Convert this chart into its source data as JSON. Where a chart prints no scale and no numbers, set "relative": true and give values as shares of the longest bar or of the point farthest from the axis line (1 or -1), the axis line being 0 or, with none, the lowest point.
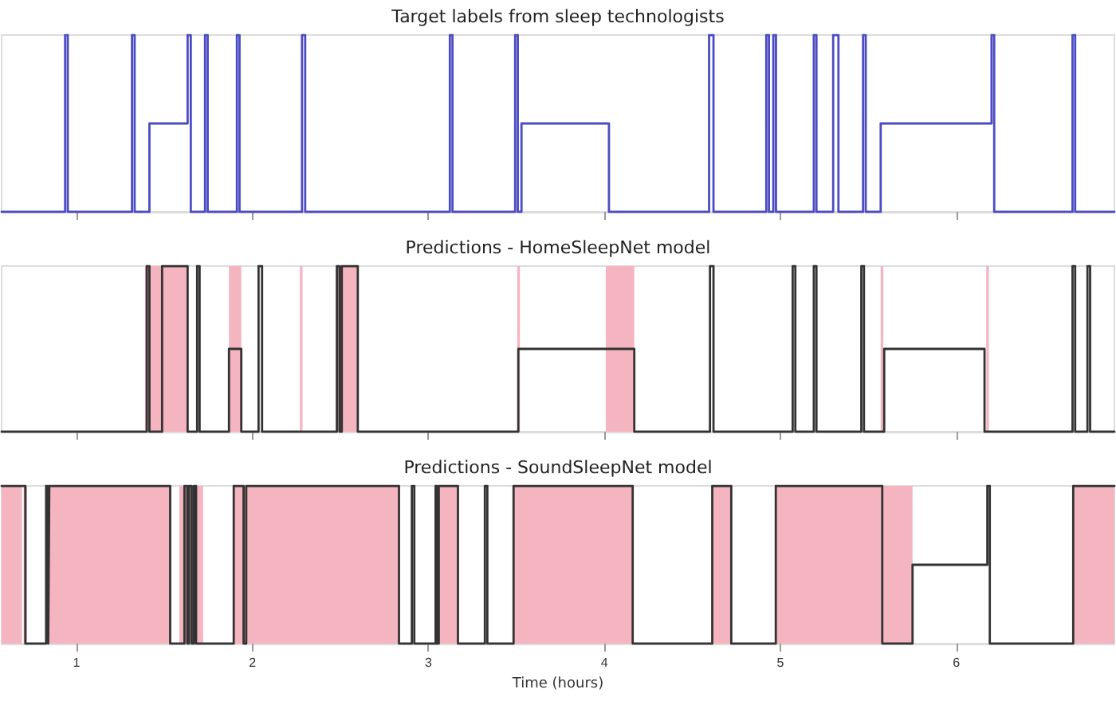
{
  "chart_data": [
    {
      "type": "step",
      "title": "Target labels from sleep technologists",
      "relative": true,
      "color": "#4b4bc4",
      "xlim": [
        0.575,
        6.898
      ],
      "xticks": [
        1,
        2,
        3,
        4,
        5,
        6
      ],
      "tick_labels": false,
      "x": [
        0.575,
        0.936,
        0.951,
        1.316,
        1.331,
        1.415,
        1.632,
        1.65,
        1.731,
        1.746,
        1.912,
        1.927,
        2.282,
        2.3,
        3.122,
        3.137,
        3.493,
        3.508,
        3.529,
        4.026,
        4.595,
        4.62,
        4.92,
        4.935,
        4.96,
        4.975,
        5.19,
        5.205,
        5.3,
        5.33,
        5.47,
        5.485,
        5.57,
        6.2,
        6.215,
        6.66,
        6.675,
        6.898
      ],
      "values": [
        0,
        1,
        0,
        1,
        0,
        0.5,
        1,
        0,
        1,
        0,
        1,
        0,
        1,
        0,
        1,
        0,
        1,
        0,
        0.5,
        0,
        1,
        0,
        1,
        0,
        1,
        0,
        1,
        0,
        1,
        0,
        1,
        0,
        0.5,
        1,
        0,
        1,
        0,
        0
      ]
    },
    {
      "type": "step",
      "title": "Predictions - HomeSleepNet model",
      "relative": true,
      "color": "#333333",
      "xlim": [
        0.575,
        6.898
      ],
      "xticks": [
        1,
        2,
        3,
        4,
        5,
        6
      ],
      "tick_labels": false,
      "x": [
        0.575,
        1.4,
        1.415,
        1.487,
        1.632,
        1.686,
        1.7,
        1.867,
        1.937,
        2.035,
        2.055,
        2.48,
        2.495,
        2.508,
        2.599,
        3.511,
        4.17,
        4.6,
        4.62,
        5.07,
        5.085,
        5.19,
        5.205,
        5.46,
        5.475,
        5.59,
        6.16,
        6.66,
        6.675,
        6.745,
        6.76,
        6.898
      ],
      "values": [
        0,
        1,
        0,
        1,
        0,
        1,
        0,
        0.5,
        0,
        1,
        0,
        1,
        0,
        1,
        0,
        0.5,
        0,
        1,
        0,
        1,
        0,
        1,
        0,
        1,
        0,
        0.5,
        0,
        1,
        0,
        1,
        0,
        0
      ],
      "bands": [
        {
          "axis": "x",
          "from": 1.39,
          "to": 1.632,
          "color": "#f4b4c0"
        },
        {
          "axis": "x",
          "from": 1.867,
          "to": 1.937,
          "color": "#f4b4c0"
        },
        {
          "axis": "x",
          "from": 2.27,
          "to": 2.285,
          "color": "#f4b4c0"
        },
        {
          "axis": "x",
          "from": 2.48,
          "to": 2.599,
          "color": "#f4b4c0"
        },
        {
          "axis": "x",
          "from": 3.505,
          "to": 3.52,
          "color": "#f4b4c0"
        },
        {
          "axis": "x",
          "from": 4.008,
          "to": 4.17,
          "color": "#f4b4c0"
        },
        {
          "axis": "x",
          "from": 5.57,
          "to": 5.585,
          "color": "#f4b4c0"
        },
        {
          "axis": "x",
          "from": 6.17,
          "to": 6.185,
          "color": "#f4b4c0"
        }
      ]
    },
    {
      "type": "step",
      "title": "Predictions - SoundSleepNet model",
      "relative": true,
      "color": "#333333",
      "xlim": [
        0.575,
        6.898
      ],
      "xticks": [
        1,
        2,
        3,
        4,
        5,
        6
      ],
      "xlabel": "Time (hours)",
      "x": [
        0.575,
        0.71,
        0.828,
        0.84,
        0.846,
        1.533,
        1.614,
        1.63,
        1.64,
        1.655,
        1.668,
        1.68,
        1.894,
        1.95,
        1.965,
        2.833,
        2.906,
        2.92,
        3.041,
        3.05,
        3.059,
        3.168,
        3.321,
        3.335,
        3.484,
        4.161,
        4.613,
        4.721,
        4.974,
        5.579,
        5.751,
        6.176,
        6.19,
        6.664,
        6.898
      ],
      "values": [
        1,
        0,
        1,
        0,
        1,
        0,
        1,
        0,
        1,
        0,
        1,
        0,
        1,
        0,
        1,
        0,
        1,
        0,
        1,
        0,
        1,
        0,
        1,
        0,
        1,
        0,
        1,
        0,
        1,
        0,
        0.5,
        1,
        0,
        1,
        1
      ],
      "bands": [
        {
          "axis": "x",
          "from": 0.575,
          "to": 0.69,
          "color": "#f4b4c0"
        },
        {
          "axis": "x",
          "from": 0.7,
          "to": 0.72,
          "color": "#f4b4c0"
        },
        {
          "axis": "x",
          "from": 0.846,
          "to": 1.533,
          "color": "#f4b4c0"
        },
        {
          "axis": "x",
          "from": 1.585,
          "to": 1.72,
          "color": "#f4b4c0"
        },
        {
          "axis": "x",
          "from": 1.894,
          "to": 2.833,
          "color": "#f4b4c0"
        },
        {
          "axis": "x",
          "from": 3.059,
          "to": 3.168,
          "color": "#f4b4c0"
        },
        {
          "axis": "x",
          "from": 3.484,
          "to": 4.161,
          "color": "#f4b4c0"
        },
        {
          "axis": "x",
          "from": 4.613,
          "to": 4.721,
          "color": "#f4b4c0"
        },
        {
          "axis": "x",
          "from": 4.974,
          "to": 5.751,
          "color": "#f4b4c0"
        },
        {
          "axis": "x",
          "from": 6.664,
          "to": 6.898,
          "color": "#f4b4c0"
        }
      ]
    }
  ]
}
